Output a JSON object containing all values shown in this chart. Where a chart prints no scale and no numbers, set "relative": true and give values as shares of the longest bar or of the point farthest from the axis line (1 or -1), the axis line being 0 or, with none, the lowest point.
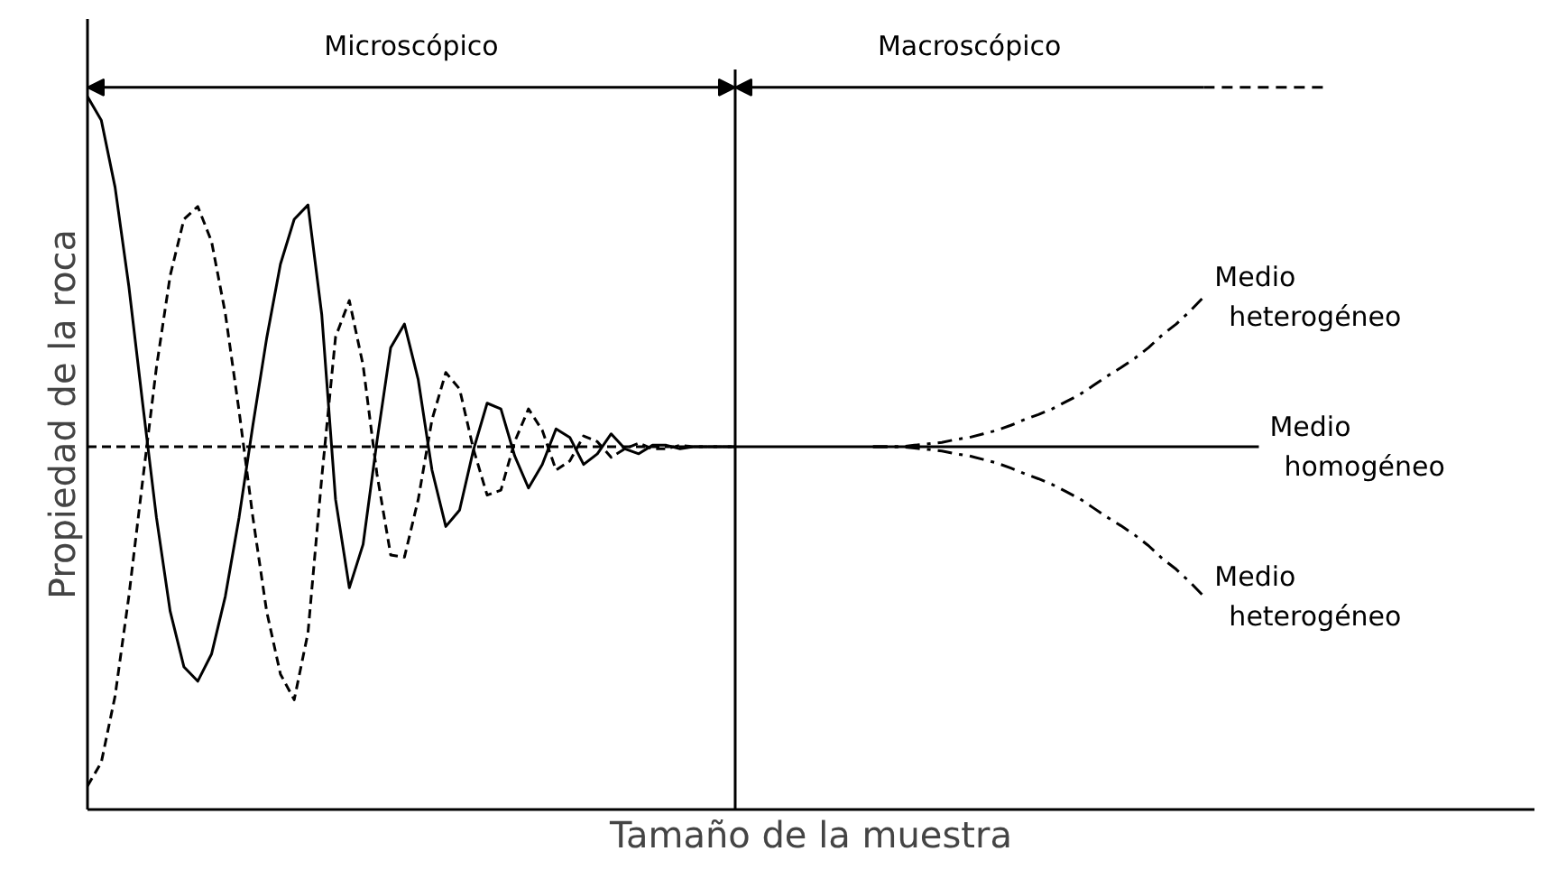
{
  "chart_data": {
    "type": "line",
    "relative": true,
    "xlabel": "Tamaño de la muestra",
    "ylabel": "Propiedad de la roca",
    "annotations": [
      "Microscópico",
      "Macroscópico"
    ],
    "categories": [
      null,
      null,
      null,
      null,
      null,
      null,
      null,
      null,
      null,
      null,
      null,
      null,
      null,
      null,
      null,
      null,
      null,
      null,
      null,
      null,
      null,
      null,
      null,
      null,
      null,
      null,
      null,
      null,
      null,
      null,
      null,
      null,
      null,
      null,
      null,
      null,
      null,
      null,
      null,
      null,
      null,
      null,
      null,
      null,
      null,
      null,
      null,
      null,
      null,
      null,
      null,
      null,
      null,
      null,
      null,
      null,
      null,
      null,
      null,
      null,
      null,
      null,
      null,
      null,
      null,
      null,
      null,
      null,
      null,
      null,
      null,
      null,
      null,
      null,
      null,
      null,
      null,
      null,
      null,
      null,
      null,
      null,
      null,
      null,
      null,
      null,
      null,
      null,
      null
    ],
    "series": [
      {
        "name": "Medio\nhomogéneo",
        "color": "#000000",
        "line_style": "solid",
        "values": [
          1.0,
          0.967,
          0.873,
          0.734,
          0.57,
          0.41,
          0.278,
          0.2,
          0.18,
          0.218,
          0.299,
          0.41,
          0.539,
          0.661,
          0.765,
          0.828,
          0.848,
          0.694,
          0.435,
          0.311,
          0.372,
          0.516,
          0.648,
          0.681,
          0.603,
          0.476,
          0.397,
          0.42,
          0.504,
          0.57,
          0.562,
          0.496,
          0.451,
          0.484,
          0.534,
          0.522,
          0.484,
          0.499,
          0.527,
          0.506,
          0.499,
          0.511,
          0.511,
          0.506,
          0.509,
          0.509,
          0.509,
          0.509,
          0.509,
          0.509,
          0.509,
          0.509,
          0.509,
          0.509,
          0.509,
          0.509,
          0.509,
          0.509,
          0.509,
          0.509,
          0.509,
          0.509,
          0.509,
          0.509,
          0.509,
          0.509,
          0.509,
          0.509,
          0.509,
          0.509,
          0.509,
          0.509,
          0.509,
          0.509,
          0.509,
          0.509,
          0.509,
          0.509,
          0.509,
          0.509,
          0.509,
          0.509,
          0.509,
          0.509,
          0.509,
          0.509,
          null,
          null,
          null
        ]
      },
      {
        "color": "#000000",
        "line_style": "dashed",
        "values": [
          0.033,
          0.066,
          0.159,
          0.299,
          0.461,
          0.62,
          0.749,
          0.828,
          0.846,
          0.797,
          0.696,
          0.559,
          0.41,
          0.278,
          0.19,
          0.154,
          0.248,
          0.466,
          0.663,
          0.714,
          0.623,
          0.471,
          0.357,
          0.354,
          0.435,
          0.547,
          0.613,
          0.59,
          0.506,
          0.441,
          0.448,
          0.516,
          0.562,
          0.532,
          0.476,
          0.489,
          0.524,
          0.516,
          0.494,
          0.506,
          0.514,
          0.506,
          0.506,
          0.511,
          0.509,
          0.509,
          0.509,
          0.509,
          null,
          null,
          null,
          null,
          null,
          null,
          null,
          null,
          null,
          null,
          null,
          null,
          null,
          null,
          null,
          null,
          null,
          null,
          null,
          null,
          null,
          null,
          null,
          null,
          null,
          null,
          null,
          null,
          null,
          null,
          null,
          null,
          null,
          null,
          null,
          null,
          null,
          null,
          null,
          null,
          null
        ]
      },
      {
        "color": "#000000",
        "line_style": "dashed",
        "values": [
          0.509,
          0.509,
          0.509,
          0.509,
          0.509,
          0.509,
          0.509,
          0.509,
          0.509,
          0.509,
          0.509,
          0.509,
          0.509,
          0.509,
          0.509,
          0.509,
          0.509,
          0.509,
          0.509,
          0.509,
          0.509,
          0.509,
          0.509,
          0.509,
          0.509,
          0.509,
          0.509,
          0.509,
          0.509,
          0.509,
          0.509,
          0.509,
          0.509,
          0.509,
          0.509,
          0.509,
          0.509,
          0.509,
          0.509,
          0.509,
          0.509,
          0.509,
          0.509,
          0.509,
          0.509,
          0.509,
          0.509,
          0.509,
          null,
          null,
          null,
          null,
          null,
          null,
          null,
          null,
          null,
          null,
          null,
          null,
          null,
          null,
          null,
          null,
          null,
          null,
          null,
          null,
          null,
          null,
          null,
          null,
          null,
          null,
          null,
          null,
          null,
          null,
          null,
          null,
          null,
          null,
          null,
          null,
          null,
          null,
          null,
          null,
          null
        ]
      },
      {
        "name": "Medio\nheterogéneo",
        "color": "#000000",
        "line_style": "dashdot",
        "values": [
          null,
          null,
          null,
          null,
          null,
          null,
          null,
          null,
          null,
          null,
          null,
          null,
          null,
          null,
          null,
          null,
          null,
          null,
          null,
          null,
          null,
          null,
          null,
          null,
          null,
          null,
          null,
          null,
          null,
          null,
          null,
          null,
          null,
          null,
          null,
          null,
          null,
          null,
          null,
          null,
          null,
          null,
          null,
          null,
          null,
          null,
          null,
          null,
          null,
          null,
          null,
          null,
          null,
          null,
          null,
          null,
          null,
          0.509,
          0.509,
          0.509,
          0.511,
          0.513,
          0.515,
          0.519,
          0.522,
          0.527,
          0.532,
          0.539,
          0.547,
          0.554,
          0.562,
          0.572,
          0.582,
          0.595,
          0.608,
          0.62,
          0.633,
          0.648,
          0.666,
          0.681,
          0.699,
          0.719,
          null,
          null,
          null,
          null,
          null,
          null,
          null
        ]
      },
      {
        "name": "Medio\nheterogéneo",
        "color": "#000000",
        "line_style": "dashdot",
        "values": [
          null,
          null,
          null,
          null,
          null,
          null,
          null,
          null,
          null,
          null,
          null,
          null,
          null,
          null,
          null,
          null,
          null,
          null,
          null,
          null,
          null,
          null,
          null,
          null,
          null,
          null,
          null,
          null,
          null,
          null,
          null,
          null,
          null,
          null,
          null,
          null,
          null,
          null,
          null,
          null,
          null,
          null,
          null,
          null,
          null,
          null,
          null,
          null,
          null,
          null,
          null,
          null,
          null,
          null,
          null,
          null,
          null,
          0.509,
          0.509,
          0.509,
          0.507,
          0.505,
          0.503,
          0.499,
          0.496,
          0.491,
          0.486,
          0.479,
          0.471,
          0.464,
          0.456,
          0.446,
          0.436,
          0.423,
          0.41,
          0.398,
          0.385,
          0.37,
          0.352,
          0.337,
          0.319,
          0.299,
          null,
          null,
          null,
          null,
          null,
          null,
          null
        ]
      }
    ]
  }
}
